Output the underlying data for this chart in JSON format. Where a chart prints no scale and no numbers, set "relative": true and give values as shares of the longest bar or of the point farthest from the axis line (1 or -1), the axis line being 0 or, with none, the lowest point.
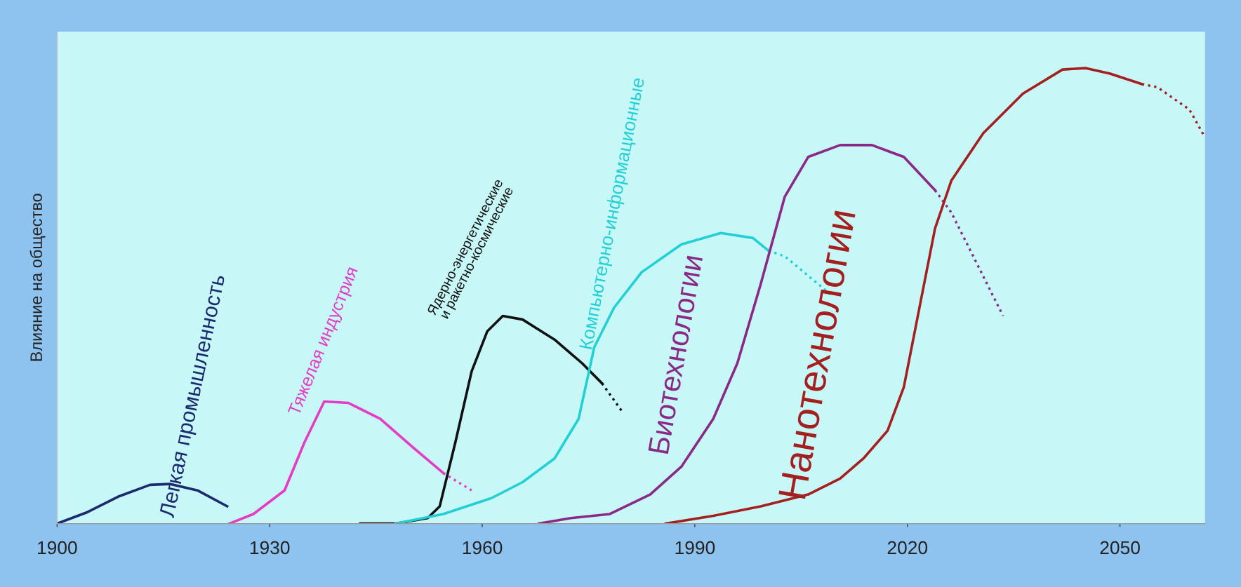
{
  "chart_data": {
    "type": "line",
    "ylabel": "Влияние на общество",
    "relative": true,
    "xlim": [
      1900,
      2062
    ],
    "xticks": [
      1900,
      1930,
      1960,
      1990,
      2020,
      2050
    ],
    "grid": false,
    "legend": false,
    "marker": "none",
    "series": [
      {
        "name": "Легкая промышленность",
        "color": "#1c2a6e",
        "line_style": "solid",
        "x": [
          1900,
          1904.1,
          1908.6,
          1913.1,
          1915.9,
          1919.8,
          1924
        ],
        "values": [
          0,
          0.024,
          0.059,
          0.085,
          0.087,
          0.073,
          0.038
        ]
      },
      {
        "name": "Тяжелая индустрия",
        "color": "#e43cc4",
        "line_style": "solid",
        "x": [
          1924.3,
          1927.7,
          1932.1,
          1934.9,
          1937.7,
          1941.1,
          1945.6,
          1950.1,
          1954.5
        ],
        "values": [
          0,
          0.021,
          0.073,
          0.178,
          0.268,
          0.265,
          0.23,
          0.169,
          0.111
        ]
      },
      {
        "color": "#e43cc4",
        "line_style": "dotted",
        "x": [
          1954.5,
          1958.5
        ],
        "values": [
          0.111,
          0.073
        ]
      },
      {
        "name": "Ядерно-энергетические\nи ракетно-космические",
        "color": "#111111",
        "line_style": "solid",
        "x": [
          1942.8,
          1947.8,
          1952.3,
          1954,
          1956.2,
          1958.5,
          1960.7,
          1962.9,
          1965.7,
          1970.2,
          1974.1,
          1976.9
        ],
        "values": [
          0,
          0,
          0.012,
          0.038,
          0.178,
          0.334,
          0.422,
          0.456,
          0.448,
          0.404,
          0.352,
          0.308
        ]
      },
      {
        "color": "#111111",
        "line_style": "dotted",
        "x": [
          1976.9,
          1979.7
        ],
        "values": [
          0.308,
          0.247
        ]
      },
      {
        "name": "Компьютерно-информационные",
        "color": "#22d0d4",
        "line_style": "solid",
        "x": [
          1947.8,
          1954.5,
          1961.3,
          1965.7,
          1970.2,
          1973.6,
          1975.8,
          1978.6,
          1982.5,
          1988.1,
          1993.7,
          1998.2,
          2000.4
        ],
        "values": [
          0,
          0.021,
          0.056,
          0.091,
          0.143,
          0.23,
          0.387,
          0.474,
          0.552,
          0.613,
          0.638,
          0.627,
          0.599
        ]
      },
      {
        "color": "#22d0d4",
        "line_style": "dotted",
        "x": [
          2000.4,
          2002.7,
          2009.4
        ],
        "values": [
          0.599,
          0.587,
          0.5
        ]
      },
      {
        "name": "Биотехнологии",
        "color": "#8b2a86",
        "line_style": "solid",
        "x": [
          1968,
          1972.5,
          1978,
          1983.7,
          1988.1,
          1992.6,
          1996,
          1999.3,
          2002.7,
          2006,
          2010.5,
          2015,
          2019.5,
          2023.9
        ],
        "values": [
          0,
          0.012,
          0.021,
          0.064,
          0.125,
          0.23,
          0.352,
          0.526,
          0.718,
          0.805,
          0.831,
          0.831,
          0.805,
          0.732
        ]
      },
      {
        "color": "#8b2a86",
        "line_style": "dotted",
        "x": [
          2023.9,
          2026.2,
          2033.5
        ],
        "values": [
          0.732,
          0.683,
          0.456
        ]
      },
      {
        "name": "Нанотехнологии",
        "color": "#a3201f",
        "line_style": "solid",
        "x": [
          1985.9,
          1992.6,
          1999.3,
          2006,
          2010.5,
          2013.8,
          2017.2,
          2019.5,
          2021.7,
          2023.9,
          2026.2,
          2030.7,
          2036.3,
          2041.9,
          2045.2,
          2048.6,
          2053.1
        ],
        "values": [
          0,
          0.017,
          0.038,
          0.064,
          0.099,
          0.143,
          0.204,
          0.3,
          0.474,
          0.648,
          0.753,
          0.857,
          0.944,
          0.997,
          1.0,
          0.988,
          0.965
        ]
      },
      {
        "color": "#a3201f",
        "line_style": "dotted",
        "x": [
          2053.1,
          2055.3,
          2059.8,
          2062
        ],
        "values": [
          0.965,
          0.958,
          0.909,
          0.848
        ]
      }
    ]
  }
}
